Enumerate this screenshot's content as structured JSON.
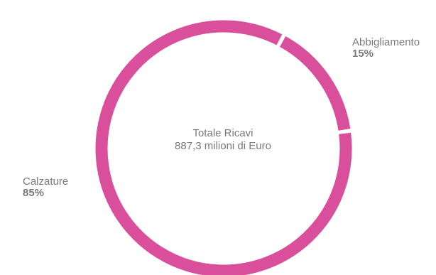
{
  "chart_data": {
    "type": "pie",
    "variant": "donut",
    "center_label": {
      "line1": "Totale Ricavi",
      "line2": "887,3 milioni di Euro"
    },
    "slices": [
      {
        "name": "Abbigliamento",
        "value": 15,
        "value_label": "15%",
        "color": "#d94f9b"
      },
      {
        "name": "Calzature",
        "value": 85,
        "value_label": "85%",
        "color": "#d94f9b"
      }
    ],
    "start_angle_deg": 28
  }
}
